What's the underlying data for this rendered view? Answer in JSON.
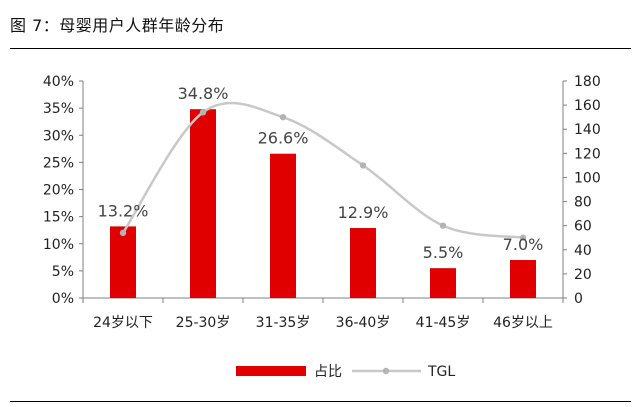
{
  "title": "图 7：母婴用户人群年龄分布",
  "colors": {
    "bar": "#e00000",
    "line": "#c8c8c8",
    "marker": "#b4b4b4"
  },
  "chart_data": {
    "type": "bar",
    "categories": [
      "24岁以下",
      "25-30岁",
      "31-35岁",
      "36-40岁",
      "41-45岁",
      "46岁以上"
    ],
    "series": [
      {
        "name": "占比",
        "type": "bar",
        "axis": "left",
        "values": [
          13.2,
          34.8,
          26.6,
          12.9,
          5.5,
          7.0
        ],
        "data_labels": [
          "13.2%",
          "34.8%",
          "26.6%",
          "12.9%",
          "5.5%",
          "7.0%"
        ]
      },
      {
        "name": "TGL",
        "type": "line",
        "axis": "right",
        "values": [
          54,
          154,
          150,
          110,
          60,
          50
        ]
      }
    ],
    "y_left": {
      "ticks": [
        "0%",
        "5%",
        "10%",
        "15%",
        "20%",
        "25%",
        "30%",
        "35%",
        "40%"
      ],
      "ylim": [
        0,
        40
      ]
    },
    "y_right": {
      "ticks": [
        "0",
        "20",
        "40",
        "60",
        "80",
        "100",
        "120",
        "140",
        "160",
        "180"
      ],
      "ylim": [
        0,
        180
      ]
    },
    "legend": {
      "position": "bottom",
      "items": [
        "占比",
        "TGL"
      ]
    },
    "grid": false
  }
}
